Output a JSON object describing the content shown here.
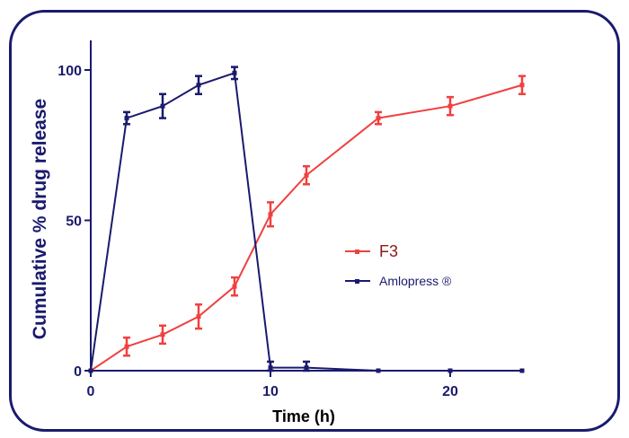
{
  "colors": {
    "frame": "#1a1a6e",
    "axis": "#1a1a6e",
    "f3": "#f04040",
    "amlopress": "#1a1a6e",
    "legend_f3_text": "#8b1a1a",
    "legend_amlo_text": "#1a1a6e"
  },
  "chart_data": {
    "type": "line",
    "title": "",
    "xlabel": "Time (h)",
    "ylabel": "Cumulative % drug release",
    "xlim": [
      0,
      24
    ],
    "ylim": [
      0,
      100
    ],
    "xticks": [
      0,
      10,
      20
    ],
    "yticks": [
      0,
      50,
      100
    ],
    "legend_position": "center-right",
    "grid": false,
    "series": [
      {
        "name": "F3",
        "color": "#f04040",
        "x": [
          0,
          2,
          4,
          6,
          8,
          10,
          12,
          16,
          20,
          24
        ],
        "y": [
          0,
          8,
          12,
          18,
          28,
          52,
          65,
          84,
          88,
          95
        ],
        "err": [
          0,
          3,
          3,
          4,
          3,
          4,
          3,
          2,
          3,
          3
        ]
      },
      {
        "name": "Amlopress ®",
        "color": "#1a1a6e",
        "x": [
          0,
          2,
          4,
          6,
          8,
          10,
          12,
          16,
          20,
          24
        ],
        "y": [
          0,
          84,
          88,
          95,
          99,
          1,
          1,
          0,
          0,
          0
        ],
        "err": [
          0,
          2,
          4,
          3,
          2,
          2,
          2,
          0,
          0,
          0
        ]
      }
    ]
  }
}
